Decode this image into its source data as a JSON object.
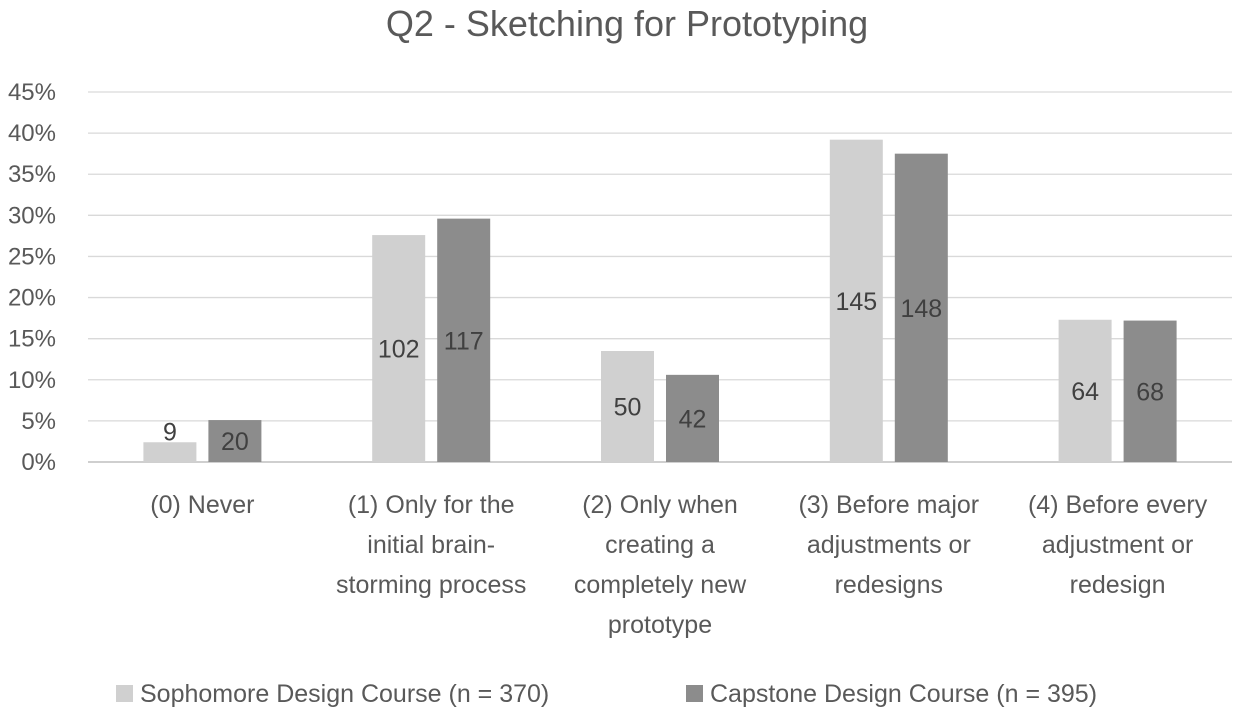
{
  "chart_data": {
    "type": "bar",
    "title": "Q2 - Sketching for Prototyping",
    "xlabel": "",
    "ylabel": "",
    "ylim": [
      0,
      0.45
    ],
    "y_ticks": [
      0,
      0.05,
      0.1,
      0.15,
      0.2,
      0.25,
      0.3,
      0.35,
      0.4,
      0.45
    ],
    "y_tick_labels": [
      "0%",
      "5%",
      "10%",
      "15%",
      "20%",
      "25%",
      "30%",
      "35%",
      "40%",
      "45%"
    ],
    "grid": true,
    "legend_position": "bottom",
    "categories": [
      [
        "(0) Never"
      ],
      [
        "(1) Only for the",
        "initial brain-",
        "storming process"
      ],
      [
        "(2) Only when",
        "creating a",
        "completely new",
        "prototype"
      ],
      [
        "(3) Before major",
        "adjustments or",
        "redesigns"
      ],
      [
        "(4) Before every",
        "adjustment or",
        "redesign"
      ]
    ],
    "series": [
      {
        "name": "Sophomore Design Course (n = 370)",
        "color": "#d0d0d0",
        "values": [
          0.024,
          0.276,
          0.135,
          0.392,
          0.173
        ],
        "labels": [
          "9",
          "102",
          "50",
          "145",
          "64"
        ]
      },
      {
        "name": "Capstone Design Course (n = 395)",
        "color": "#8c8c8c",
        "values": [
          0.051,
          0.296,
          0.106,
          0.375,
          0.172
        ],
        "labels": [
          "20",
          "117",
          "42",
          "148",
          "68"
        ]
      }
    ]
  }
}
